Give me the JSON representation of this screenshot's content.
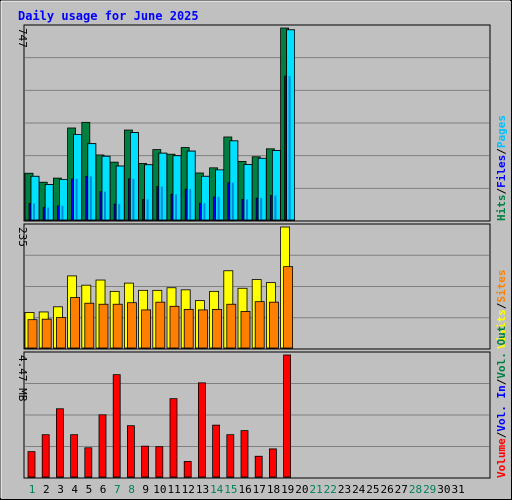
{
  "title": "Daily usage for June 2025",
  "colors": {
    "background": "#c0c0c0",
    "grid": "#808080",
    "hits": "#008040",
    "files": "#00c0ff",
    "pages": "#00e0ff",
    "sites": "#ff8000",
    "visits": "#ffff00",
    "kbytes": "#ff0000",
    "weekend_day": "#00805c",
    "weekday": "#000000",
    "title": "#0000ff"
  },
  "panels": {
    "top": {
      "max_label": "747"
    },
    "middle": {
      "max_label": "235"
    },
    "bottom": {
      "max_label": "4.47 MB"
    }
  },
  "legends": {
    "top": [
      {
        "text": "Hits",
        "color": "#008040"
      },
      {
        "text": "/",
        "color": "#000000"
      },
      {
        "text": "Files",
        "color": "#0000ff"
      },
      {
        "text": "/",
        "color": "#000000"
      },
      {
        "text": "Pages",
        "color": "#00c0ff"
      }
    ],
    "middle": [
      {
        "text": "Visits",
        "color": "#ffff00"
      },
      {
        "text": "/",
        "color": "#000000"
      },
      {
        "text": "Sites",
        "color": "#ff8000"
      }
    ],
    "bottom": [
      {
        "text": "Volume",
        "color": "#ff0000"
      },
      {
        "text": "/",
        "color": "#000000"
      },
      {
        "text": "Vol. In",
        "color": "#0000ff"
      },
      {
        "text": "/",
        "color": "#000000"
      },
      {
        "text": "Vol. Out",
        "color": "#008040"
      }
    ]
  },
  "chart_data": {
    "type": "bar",
    "title": "Daily usage for June 2025",
    "categories": [
      "1",
      "2",
      "3",
      "4",
      "5",
      "6",
      "7",
      "8",
      "9",
      "10",
      "11",
      "12",
      "13",
      "14",
      "15",
      "16",
      "17",
      "18",
      "19",
      "20",
      "21",
      "22",
      "23",
      "24",
      "25",
      "26",
      "27",
      "28",
      "29",
      "30",
      "31"
    ],
    "weekend_days": [
      "1",
      "7",
      "8",
      "14",
      "15",
      "21",
      "22",
      "28",
      "29"
    ],
    "panels": [
      {
        "name": "Hits / Files / Pages",
        "ymax": 747,
        "series": [
          {
            "name": "Hits",
            "color": "#008040",
            "values": [
              182,
              147,
              163,
              358,
              380,
              253,
              225,
              350,
              220,
              274,
              256,
              282,
              183,
              203,
              323,
              228,
              246,
              277,
              747,
              0,
              0,
              0,
              0,
              0,
              0,
              0,
              0,
              0,
              0,
              0,
              0
            ]
          },
          {
            "name": "Files",
            "color": "#0000ff",
            "values": [
              64,
              48,
              55,
              160,
              170,
              110,
              62,
              160,
              80,
              130,
              100,
              120,
              65,
              90,
              145,
              80,
              85,
              95,
              560,
              0,
              0,
              0,
              0,
              0,
              0,
              0,
              0,
              0,
              0,
              0,
              0
            ]
          },
          {
            "name": "Pages",
            "color": "#00e0ff",
            "values": [
              170,
              138,
              158,
              333,
              297,
              248,
              210,
              340,
              215,
              260,
              250,
              268,
              170,
              195,
              308,
              216,
              240,
              270,
              740,
              0,
              0,
              0,
              0,
              0,
              0,
              0,
              0,
              0,
              0,
              0,
              0
            ]
          }
        ]
      },
      {
        "name": "Visits / Sites",
        "ymax": 235,
        "series": [
          {
            "name": "Visits",
            "color": "#ffff00",
            "values": [
              69,
              70,
              80,
              140,
              122,
              132,
              110,
              126,
              112,
              112,
              117,
              113,
              92,
              110,
              150,
              116,
              133,
              127,
              235,
              0,
              0,
              0,
              0,
              0,
              0,
              0,
              0,
              0,
              0,
              0,
              0
            ]
          },
          {
            "name": "Sites",
            "color": "#ff8000",
            "values": [
              55,
              56,
              59,
              98,
              87,
              85,
              85,
              88,
              74,
              89,
              81,
              75,
              74,
              75,
              85,
              71,
              90,
              89,
              158,
              0,
              0,
              0,
              0,
              0,
              0,
              0,
              0,
              0,
              0,
              0,
              0
            ]
          }
        ]
      },
      {
        "name": "Volume",
        "ymax": 4.47,
        "unit": "MB",
        "series": [
          {
            "name": "Volume",
            "color": "#ff0000",
            "values": [
              0.93,
              1.55,
              2.5,
              1.55,
              1.07,
              2.28,
              3.75,
              1.88,
              1.13,
              1.11,
              2.87,
              0.57,
              3.45,
              1.9,
              1.55,
              1.7,
              0.76,
              1.03,
              4.47,
              0,
              0,
              0,
              0,
              0,
              0,
              0,
              0,
              0,
              0,
              0,
              0
            ]
          }
        ]
      }
    ]
  }
}
